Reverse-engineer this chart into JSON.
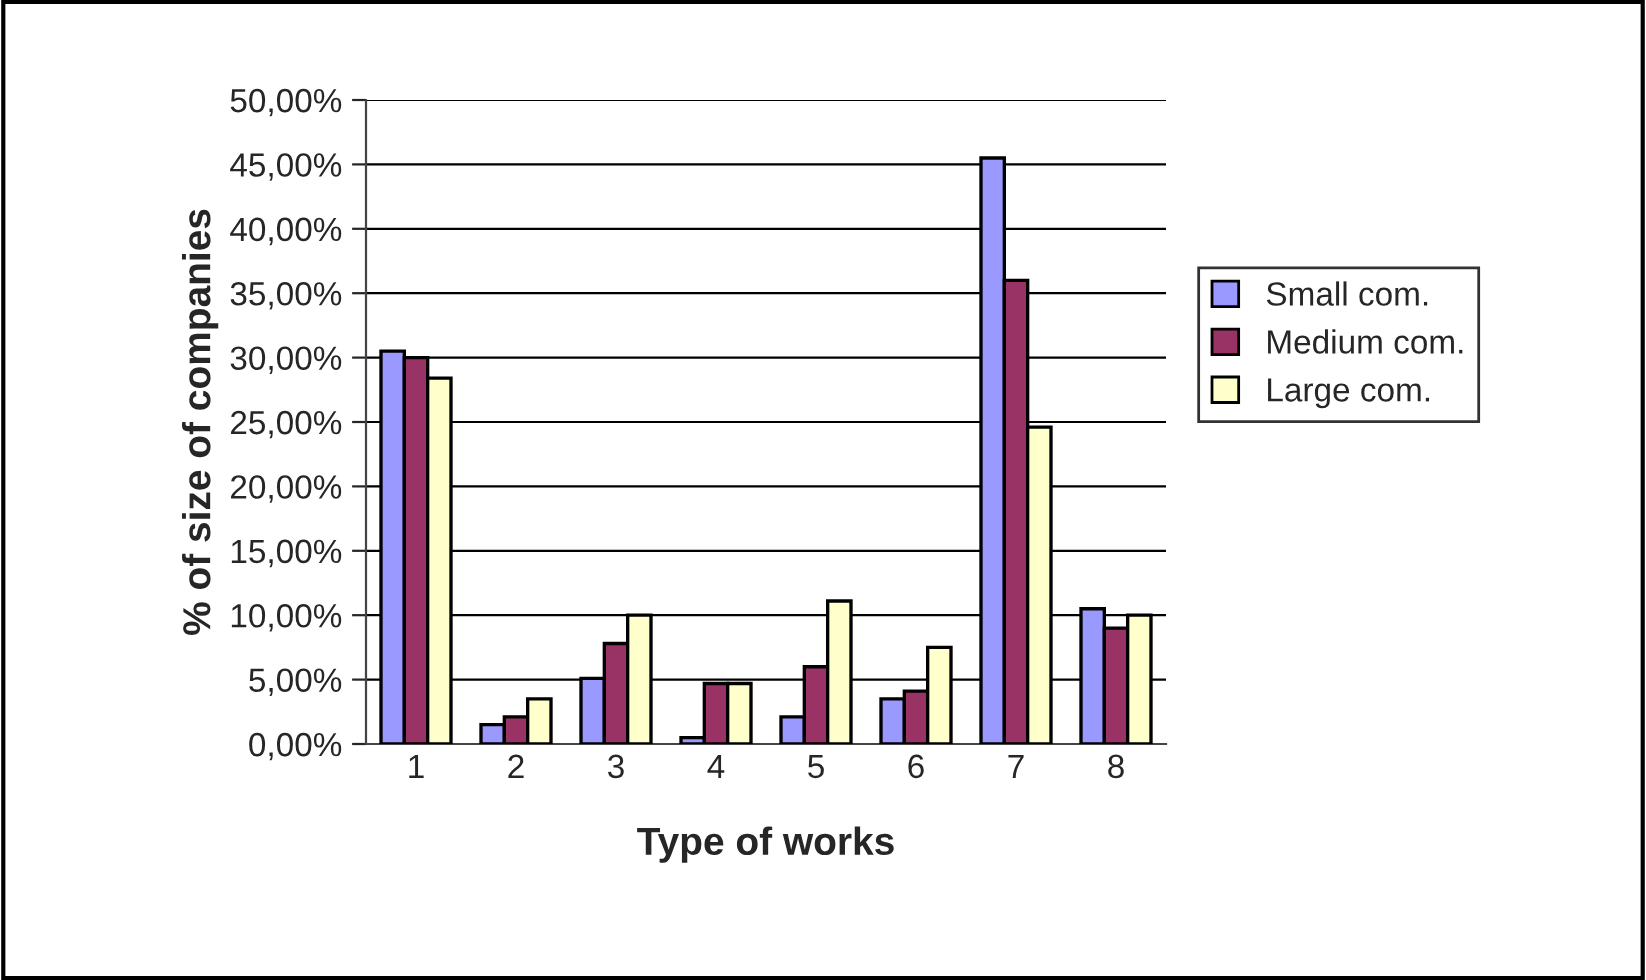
{
  "chart_data": {
    "type": "bar",
    "xlabel": "Type of works",
    "ylabel": "% of size of companies",
    "categories": [
      "1",
      "2",
      "3",
      "4",
      "5",
      "6",
      "7",
      "8"
    ],
    "series": [
      {
        "name": "Small com.",
        "color": "#9999ff",
        "values": [
          30.5,
          1.5,
          5.1,
          0.5,
          2.1,
          3.5,
          45.5,
          10.5
        ]
      },
      {
        "name": "Medium com.",
        "color": "#993366",
        "values": [
          30.0,
          2.1,
          7.8,
          4.7,
          6.0,
          4.1,
          36.0,
          9.0
        ]
      },
      {
        "name": "Large com.",
        "color": "#ffffcc",
        "values": [
          28.4,
          3.5,
          10.0,
          4.7,
          11.1,
          7.5,
          24.6,
          10.0
        ]
      }
    ],
    "ylim": [
      0,
      50
    ],
    "yticks": [
      {
        "value": 0,
        "label": "0,00%"
      },
      {
        "value": 5,
        "label": "5,00%"
      },
      {
        "value": 10,
        "label": "10,00%"
      },
      {
        "value": 15,
        "label": "15,00%"
      },
      {
        "value": 20,
        "label": "20,00%"
      },
      {
        "value": 25,
        "label": "25,00%"
      },
      {
        "value": 30,
        "label": "30,00%"
      },
      {
        "value": 35,
        "label": "35,00%"
      },
      {
        "value": 40,
        "label": "40,00%"
      },
      {
        "value": 45,
        "label": "45,00%"
      },
      {
        "value": 50,
        "label": "50,00%"
      }
    ],
    "grid": "y",
    "legend": "right"
  }
}
